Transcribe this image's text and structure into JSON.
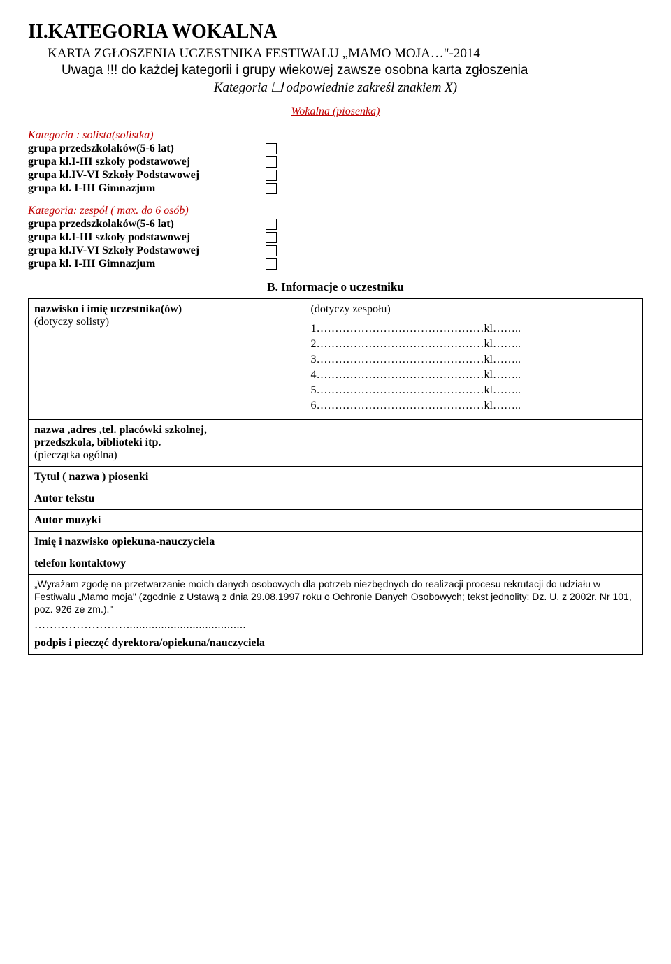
{
  "colors": {
    "accent": "#c00000"
  },
  "header": {
    "title": "II.KATEGORIA WOKALNA",
    "sub1": "KARTA ZGŁOSZENIA UCZESTNIKA FESTIWALU „MAMO MOJA…\"-2014",
    "sub2": "Uwaga !!! do każdej kategorii i grupy wiekowej zawsze osobna karta zgłoszenia",
    "sub3": "Kategoria ❑ odpowiednie zakreśl  znakiem X)",
    "center": "Wokalna (piosenka)"
  },
  "cat1": {
    "title": "Kategoria : solista(solistka)",
    "rows": [
      "grupa  przedszkolaków(5-6 lat)",
      "grupa kl.I-III  szkoły podstawowej",
      "grupa kl.IV-VI Szkoły Podstawowej",
      "grupa kl. I-III Gimnazjum"
    ]
  },
  "cat2": {
    "title": "Kategoria: zespół ( max. do 6 osób)",
    "rows": [
      "grupa  przedszkolaków(5-6 lat)",
      "grupa kl.I-III  szkoły podstawowej",
      "grupa kl.IV-VI Szkoły Podstawowej",
      "grupa kl. I-III Gimnazjum"
    ]
  },
  "sectionB": "B. Informacje o uczestniku",
  "table": {
    "r1l1": "nazwisko i imię uczestnika(ów)",
    "r1l2": "(dotyczy solisty)",
    "r1r_head": "(dotyczy zespołu)",
    "lines": [
      "1………………………………………kl……..",
      "2………………………………………kl……..",
      "3………………………………………kl……..",
      "4………………………………………kl……..",
      "5………………………………………kl……..",
      "6………………………………………kl…….."
    ],
    "r2l1": "nazwa ,adres ,tel. placówki szkolnej,",
    "r2l2": "przedszkola, biblioteki itp.",
    "r2l3": "(pieczątka ogólna)",
    "r3": "Tytuł ( nazwa )  piosenki",
    "r4": "Autor tekstu",
    "r5": "Autor muzyki",
    "r6": "Imię i nazwisko opiekuna-nauczyciela",
    "r7": "telefon kontaktowy"
  },
  "consent": "„Wyrażam zgodę na przetwarzanie moich danych osobowych dla potrzeb niezbędnych do realizacji procesu rekrutacji do udziału w  Festiwalu „Mamo moja\" (zgodnie z Ustawą z dnia 29.08.1997 roku o Ochronie Danych Osobowych; tekst jednolity: Dz. U. z 2002r. Nr 101, poz. 926 ze zm.).\"",
  "dots": "……………………......................................",
  "signature": "podpis i pieczęć  dyrektora/opiekuna/nauczyciela"
}
